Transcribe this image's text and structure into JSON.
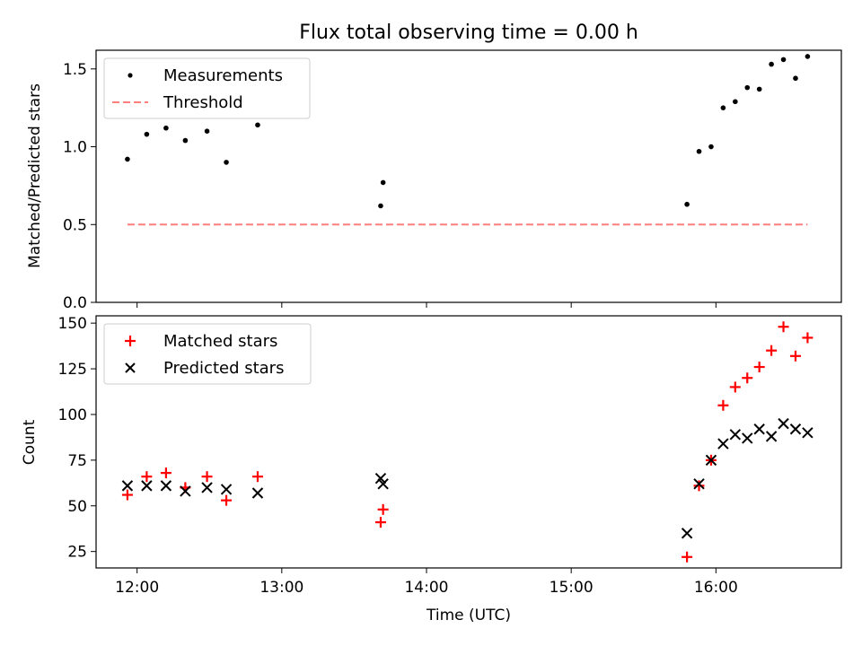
{
  "chart_data": [
    {
      "type": "scatter",
      "title": "Flux total observing time = 0.00 h",
      "xlabel": "",
      "ylabel": "Matched/Predicted stars",
      "ylim": [
        0,
        1.62
      ],
      "xlim": [
        "11:43",
        "16:52"
      ],
      "y_ticks": [
        "0.0",
        "0.5",
        "1.0",
        "1.5"
      ],
      "legend_position": "upper-left",
      "series": [
        {
          "name": "Measurements",
          "marker": "dot",
          "color": "#000000",
          "points": [
            {
              "x": "11:56",
              "y": 0.92
            },
            {
              "x": "12:04",
              "y": 1.08
            },
            {
              "x": "12:12",
              "y": 1.12
            },
            {
              "x": "12:20",
              "y": 1.04
            },
            {
              "x": "12:29",
              "y": 1.1
            },
            {
              "x": "12:37",
              "y": 0.9
            },
            {
              "x": "12:50",
              "y": 1.14
            },
            {
              "x": "13:41",
              "y": 0.62
            },
            {
              "x": "13:42",
              "y": 0.77
            },
            {
              "x": "15:48",
              "y": 0.63
            },
            {
              "x": "15:53",
              "y": 0.97
            },
            {
              "x": "15:58",
              "y": 1.0
            },
            {
              "x": "16:03",
              "y": 1.25
            },
            {
              "x": "16:08",
              "y": 1.29
            },
            {
              "x": "16:13",
              "y": 1.38
            },
            {
              "x": "16:18",
              "y": 1.37
            },
            {
              "x": "16:23",
              "y": 1.53
            },
            {
              "x": "16:28",
              "y": 1.56
            },
            {
              "x": "16:33",
              "y": 1.44
            },
            {
              "x": "16:38",
              "y": 1.58
            }
          ]
        },
        {
          "name": "Threshold",
          "line_style": "dashed",
          "color": "#ff7f7f",
          "points": [
            {
              "x": "11:56",
              "y": 0.5
            },
            {
              "x": "16:38",
              "y": 0.5
            }
          ]
        }
      ]
    },
    {
      "type": "scatter",
      "title": "",
      "xlabel": "Time (UTC)",
      "ylabel": "Count",
      "ylim": [
        16,
        154
      ],
      "xlim": [
        "11:43",
        "16:52"
      ],
      "x_ticks": [
        "12:00",
        "13:00",
        "14:00",
        "15:00",
        "16:00"
      ],
      "y_ticks": [
        "25",
        "50",
        "75",
        "100",
        "125",
        "150"
      ],
      "legend_position": "upper-left",
      "series": [
        {
          "name": "Matched stars",
          "marker": "plus",
          "color": "#ff0000",
          "points": [
            {
              "x": "11:56",
              "y": 56
            },
            {
              "x": "12:04",
              "y": 66
            },
            {
              "x": "12:12",
              "y": 68
            },
            {
              "x": "12:20",
              "y": 60
            },
            {
              "x": "12:29",
              "y": 66
            },
            {
              "x": "12:37",
              "y": 53
            },
            {
              "x": "12:50",
              "y": 66
            },
            {
              "x": "13:41",
              "y": 41
            },
            {
              "x": "13:42",
              "y": 48
            },
            {
              "x": "15:48",
              "y": 22
            },
            {
              "x": "15:53",
              "y": 61
            },
            {
              "x": "15:58",
              "y": 75
            },
            {
              "x": "16:03",
              "y": 105
            },
            {
              "x": "16:08",
              "y": 115
            },
            {
              "x": "16:13",
              "y": 120
            },
            {
              "x": "16:18",
              "y": 126
            },
            {
              "x": "16:23",
              "y": 135
            },
            {
              "x": "16:28",
              "y": 148
            },
            {
              "x": "16:33",
              "y": 132
            },
            {
              "x": "16:38",
              "y": 142
            }
          ]
        },
        {
          "name": "Predicted stars",
          "marker": "x",
          "color": "#000000",
          "points": [
            {
              "x": "11:56",
              "y": 61
            },
            {
              "x": "12:04",
              "y": 61
            },
            {
              "x": "12:12",
              "y": 61
            },
            {
              "x": "12:20",
              "y": 58
            },
            {
              "x": "12:29",
              "y": 60
            },
            {
              "x": "12:37",
              "y": 59
            },
            {
              "x": "12:50",
              "y": 57
            },
            {
              "x": "13:41",
              "y": 65
            },
            {
              "x": "13:42",
              "y": 62
            },
            {
              "x": "15:48",
              "y": 35
            },
            {
              "x": "15:53",
              "y": 62
            },
            {
              "x": "15:58",
              "y": 75
            },
            {
              "x": "16:03",
              "y": 84
            },
            {
              "x": "16:08",
              "y": 89
            },
            {
              "x": "16:13",
              "y": 87
            },
            {
              "x": "16:18",
              "y": 92
            },
            {
              "x": "16:23",
              "y": 88
            },
            {
              "x": "16:28",
              "y": 95
            },
            {
              "x": "16:33",
              "y": 92
            },
            {
              "x": "16:38",
              "y": 90
            }
          ]
        }
      ]
    }
  ]
}
